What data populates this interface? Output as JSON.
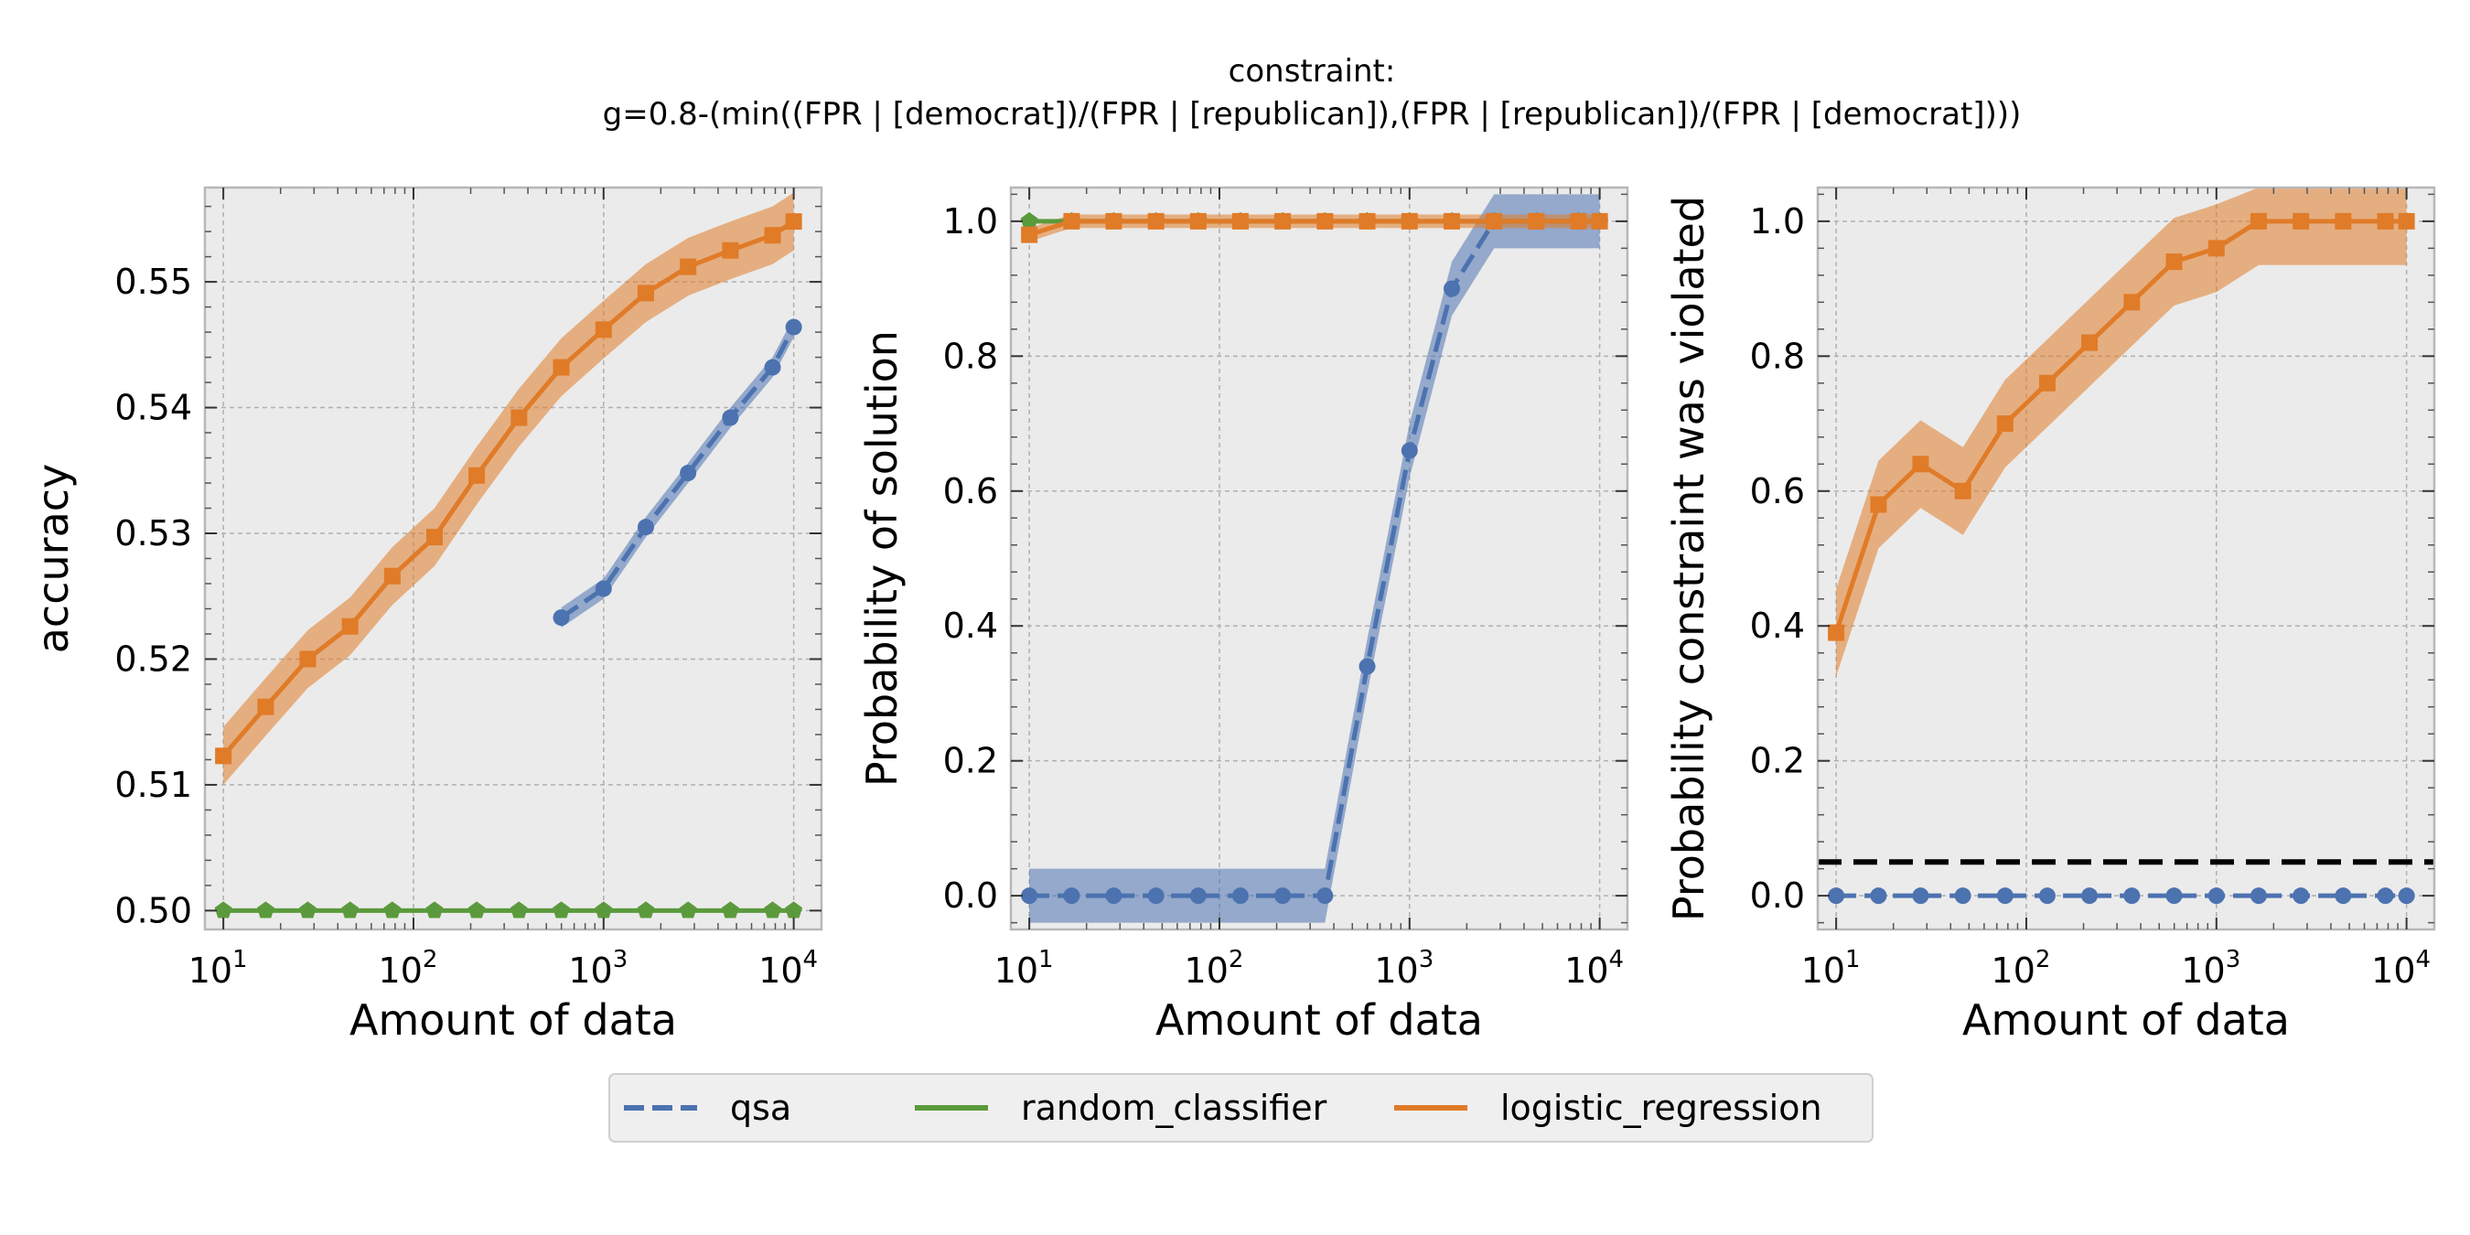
{
  "figure": {
    "suptitle_line1": "constraint:",
    "suptitle_line2": "g=0.8-(min((FPR | [democrat])/(FPR | [republican]),(FPR | [republican])/(FPR | [democrat])))"
  },
  "legend": {
    "placement": "bottom-center",
    "items": [
      {
        "label": "qsa",
        "color": "#4c72b0",
        "style": "dashed"
      },
      {
        "label": "random_classifier",
        "color": "#5b9a3c",
        "style": "solid"
      },
      {
        "label": "logistic_regression",
        "color": "#e07b28",
        "style": "solid"
      }
    ]
  },
  "colors": {
    "qsa": "#4c72b0",
    "random_classifier": "#5b9a3c",
    "logistic_regression": "#e07b28",
    "panel_background": "#ebebeb",
    "grid": "#b0b0b0",
    "threshold_line": "#000000"
  },
  "chart_data": [
    {
      "type": "line",
      "xlabel": "Amount of data",
      "ylabel": "accuracy",
      "xscale": "log",
      "xlim": [
        8,
        14000
      ],
      "ylim": [
        0.4985,
        0.5575
      ],
      "xticks": [
        10,
        100,
        1000,
        10000
      ],
      "yticks": [
        0.5,
        0.51,
        0.52,
        0.53,
        0.54,
        0.55
      ],
      "ytick_labels": [
        "0.50",
        "0.51",
        "0.52",
        "0.53",
        "0.54",
        "0.55"
      ],
      "grid": true,
      "series": [
        {
          "name": "logistic_regression",
          "marker": "square",
          "x": [
            10,
            16.7,
            27.8,
            46.4,
            77.4,
            129,
            215,
            359,
            599,
            1000,
            1668,
            2783,
            4642,
            7743,
            10000
          ],
          "y": [
            0.5123,
            0.5162,
            0.52,
            0.5226,
            0.5266,
            0.5297,
            0.5346,
            0.5392,
            0.5432,
            0.5462,
            0.5491,
            0.5512,
            0.5525,
            0.5537,
            0.5548
          ],
          "band": 0.0023
        },
        {
          "name": "qsa",
          "marker": "circle",
          "dashed": true,
          "x": [
            599,
            1000,
            1668,
            2783,
            4642,
            7743,
            10000
          ],
          "y": [
            0.5233,
            0.5256,
            0.5305,
            0.5348,
            0.5392,
            0.5432,
            0.5464
          ],
          "band": 0.0008
        },
        {
          "name": "random_classifier",
          "marker": "pentagon",
          "x": [
            10,
            16.7,
            27.8,
            46.4,
            77.4,
            129,
            215,
            359,
            599,
            1000,
            1668,
            2783,
            4642,
            7743,
            10000
          ],
          "y": [
            0.5,
            0.5,
            0.5,
            0.5,
            0.5,
            0.5,
            0.5,
            0.5,
            0.5,
            0.5,
            0.5,
            0.5,
            0.5,
            0.5,
            0.5
          ],
          "band": 0
        }
      ]
    },
    {
      "type": "line",
      "xlabel": "Amount of data",
      "ylabel": "Probability of solution",
      "xscale": "log",
      "xlim": [
        8,
        14000
      ],
      "ylim": [
        -0.05,
        1.05
      ],
      "xticks": [
        10,
        100,
        1000,
        10000
      ],
      "yticks": [
        0.0,
        0.2,
        0.4,
        0.6,
        0.8,
        1.0
      ],
      "ytick_labels": [
        "0.0",
        "0.2",
        "0.4",
        "0.6",
        "0.8",
        "1.0"
      ],
      "grid": true,
      "series": [
        {
          "name": "qsa",
          "marker": "circle",
          "dashed": true,
          "x": [
            10,
            16.7,
            27.8,
            46.4,
            77.4,
            129,
            215,
            359,
            599,
            1000,
            1668,
            2783,
            4642,
            7743,
            10000
          ],
          "y": [
            0,
            0,
            0,
            0,
            0,
            0,
            0,
            0,
            0.34,
            0.66,
            0.9,
            1.0,
            1.0,
            1.0,
            1.0
          ],
          "band": 0.04
        },
        {
          "name": "random_classifier",
          "marker": "pentagon",
          "x": [
            10,
            16.7,
            27.8,
            46.4,
            77.4,
            129,
            215,
            359,
            599,
            1000,
            1668,
            2783,
            4642,
            7743,
            10000
          ],
          "y": [
            1,
            1,
            1,
            1,
            1,
            1,
            1,
            1,
            1,
            1,
            1,
            1,
            1,
            1,
            1
          ],
          "band": 0
        },
        {
          "name": "logistic_regression",
          "marker": "square",
          "x": [
            10,
            16.7,
            27.8,
            46.4,
            77.4,
            129,
            215,
            359,
            599,
            1000,
            1668,
            2783,
            4642,
            7743,
            10000
          ],
          "y": [
            0.98,
            1,
            1,
            1,
            1,
            1,
            1,
            1,
            1,
            1,
            1,
            1,
            1,
            1,
            1
          ],
          "band": 0.01
        }
      ]
    },
    {
      "type": "line",
      "xlabel": "Amount of data",
      "ylabel": "Probability constraint was violated",
      "xscale": "log",
      "xlim": [
        8,
        14000
      ],
      "ylim": [
        -0.05,
        1.05
      ],
      "xticks": [
        10,
        100,
        1000,
        10000
      ],
      "yticks": [
        0.0,
        0.2,
        0.4,
        0.6,
        0.8,
        1.0
      ],
      "ytick_labels": [
        "0.0",
        "0.2",
        "0.4",
        "0.6",
        "0.8",
        "1.0"
      ],
      "grid": true,
      "hline": 0.05,
      "series": [
        {
          "name": "logistic_regression",
          "marker": "square",
          "x": [
            10,
            16.7,
            27.8,
            46.4,
            77.4,
            129,
            215,
            359,
            599,
            1000,
            1668,
            2783,
            4642,
            7743,
            10000
          ],
          "y": [
            0.39,
            0.58,
            0.64,
            0.6,
            0.7,
            0.76,
            0.82,
            0.88,
            0.94,
            0.96,
            1.0,
            1.0,
            1.0,
            1.0,
            1.0
          ],
          "band": 0.065
        },
        {
          "name": "qsa",
          "marker": "circle",
          "dashed": true,
          "x": [
            10,
            16.7,
            27.8,
            46.4,
            77.4,
            129,
            215,
            359,
            599,
            1000,
            1668,
            2783,
            4642,
            7743,
            10000
          ],
          "y": [
            0,
            0,
            0,
            0,
            0,
            0,
            0,
            0,
            0,
            0,
            0,
            0,
            0,
            0,
            0
          ],
          "band": 0
        }
      ]
    }
  ]
}
